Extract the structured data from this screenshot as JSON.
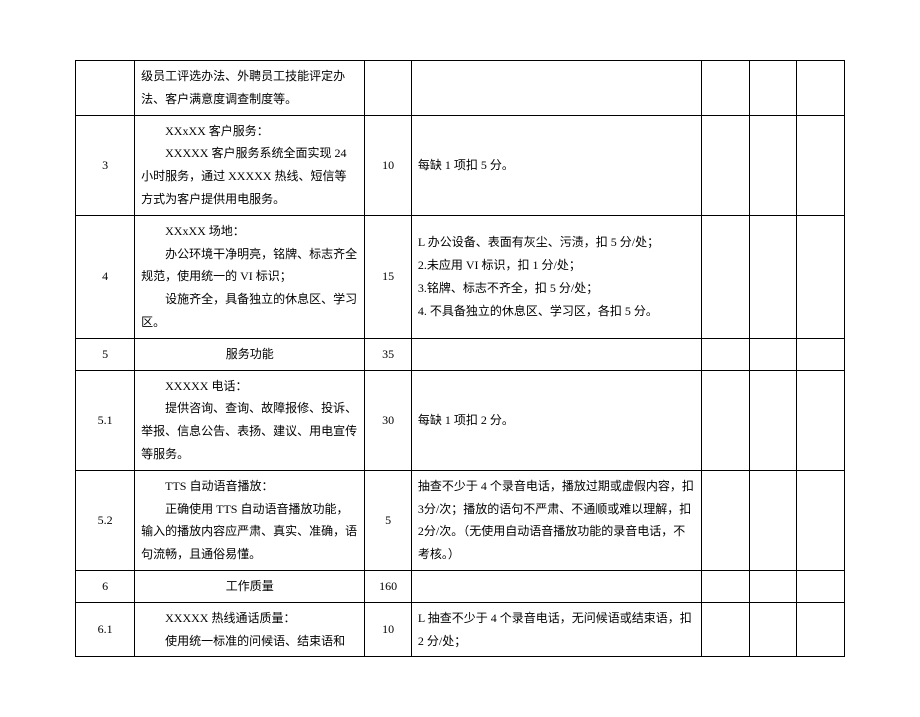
{
  "table": {
    "rows": [
      {
        "num": "",
        "content_title": "",
        "content_body": "级员工评选办法、外聘员工技能评定办法、客户满意度调查制度等。",
        "score": "",
        "criteria": "",
        "e1": "",
        "e2": "",
        "e3": ""
      },
      {
        "num": "3",
        "content_title": "XXxXX 客户服务：",
        "content_body": "XXXXX 客户服务系统全面实现 24 小时服务，通过 XXXXX 热线、短信等方式为客户提供用电服务。",
        "score": "10",
        "criteria": "每缺 1 项扣 5 分。",
        "e1": "",
        "e2": "",
        "e3": ""
      },
      {
        "num": "4",
        "content_title": "XXxXX 场地：",
        "content_body_1": "办公环境干净明亮，铭牌、标志齐全规范，使用统一的 VI 标识；",
        "content_body_2": "设施齐全，具备独立的休息区、学习区。",
        "score": "15",
        "criteria_1": "L 办公设备、表面有灰尘、污渍，扣 5 分/处；",
        "criteria_2": "2.未应用 VI 标识，扣 1 分/处；",
        "criteria_3": "3.铭牌、标志不齐全，扣 5 分/处；",
        "criteria_4": "4. 不具备独立的休息区、学习区，各扣 5 分。",
        "e1": "",
        "e2": "",
        "e3": ""
      },
      {
        "num": "5",
        "content_title": "服务功能",
        "content_body": "",
        "score": "35",
        "criteria": "",
        "e1": "",
        "e2": "",
        "e3": ""
      },
      {
        "num": "5.1",
        "content_title": "XXXXX 电话：",
        "content_body": "提供咨询、查询、故障报修、投诉、举报、信息公告、表扬、建议、用电宣传等服务。",
        "score": "30",
        "criteria": "每缺 1 项扣 2 分。",
        "e1": "",
        "e2": "",
        "e3": ""
      },
      {
        "num": "5.2",
        "content_title": "TTS 自动语音播放：",
        "content_body": "正确使用 TTS 自动语音播放功能，输入的播放内容应严肃、真实、准确，语句流畅，且通俗易懂。",
        "score": "5",
        "criteria": "抽查不少于 4 个录音电话，播放过期或虚假内容，扣 3分/次；播放的语句不严肃、不通顺或难以理解，扣 2分/次。（无使用自动语音播放功能的录音电话，不考核。）",
        "e1": "",
        "e2": "",
        "e3": ""
      },
      {
        "num": "6",
        "content_title": "工作质量",
        "content_body": "",
        "score": "160",
        "criteria": "",
        "e1": "",
        "e2": "",
        "e3": ""
      },
      {
        "num": "6.1",
        "content_title": "XXXXX 热线通话质量：",
        "content_body": "使用统一标准的问候语、结束语和",
        "score": "10",
        "criteria": "L 抽查不少于 4 个录音电话，无问候语或结束语，扣2 分/处；",
        "e1": "",
        "e2": "",
        "e3": ""
      }
    ]
  }
}
